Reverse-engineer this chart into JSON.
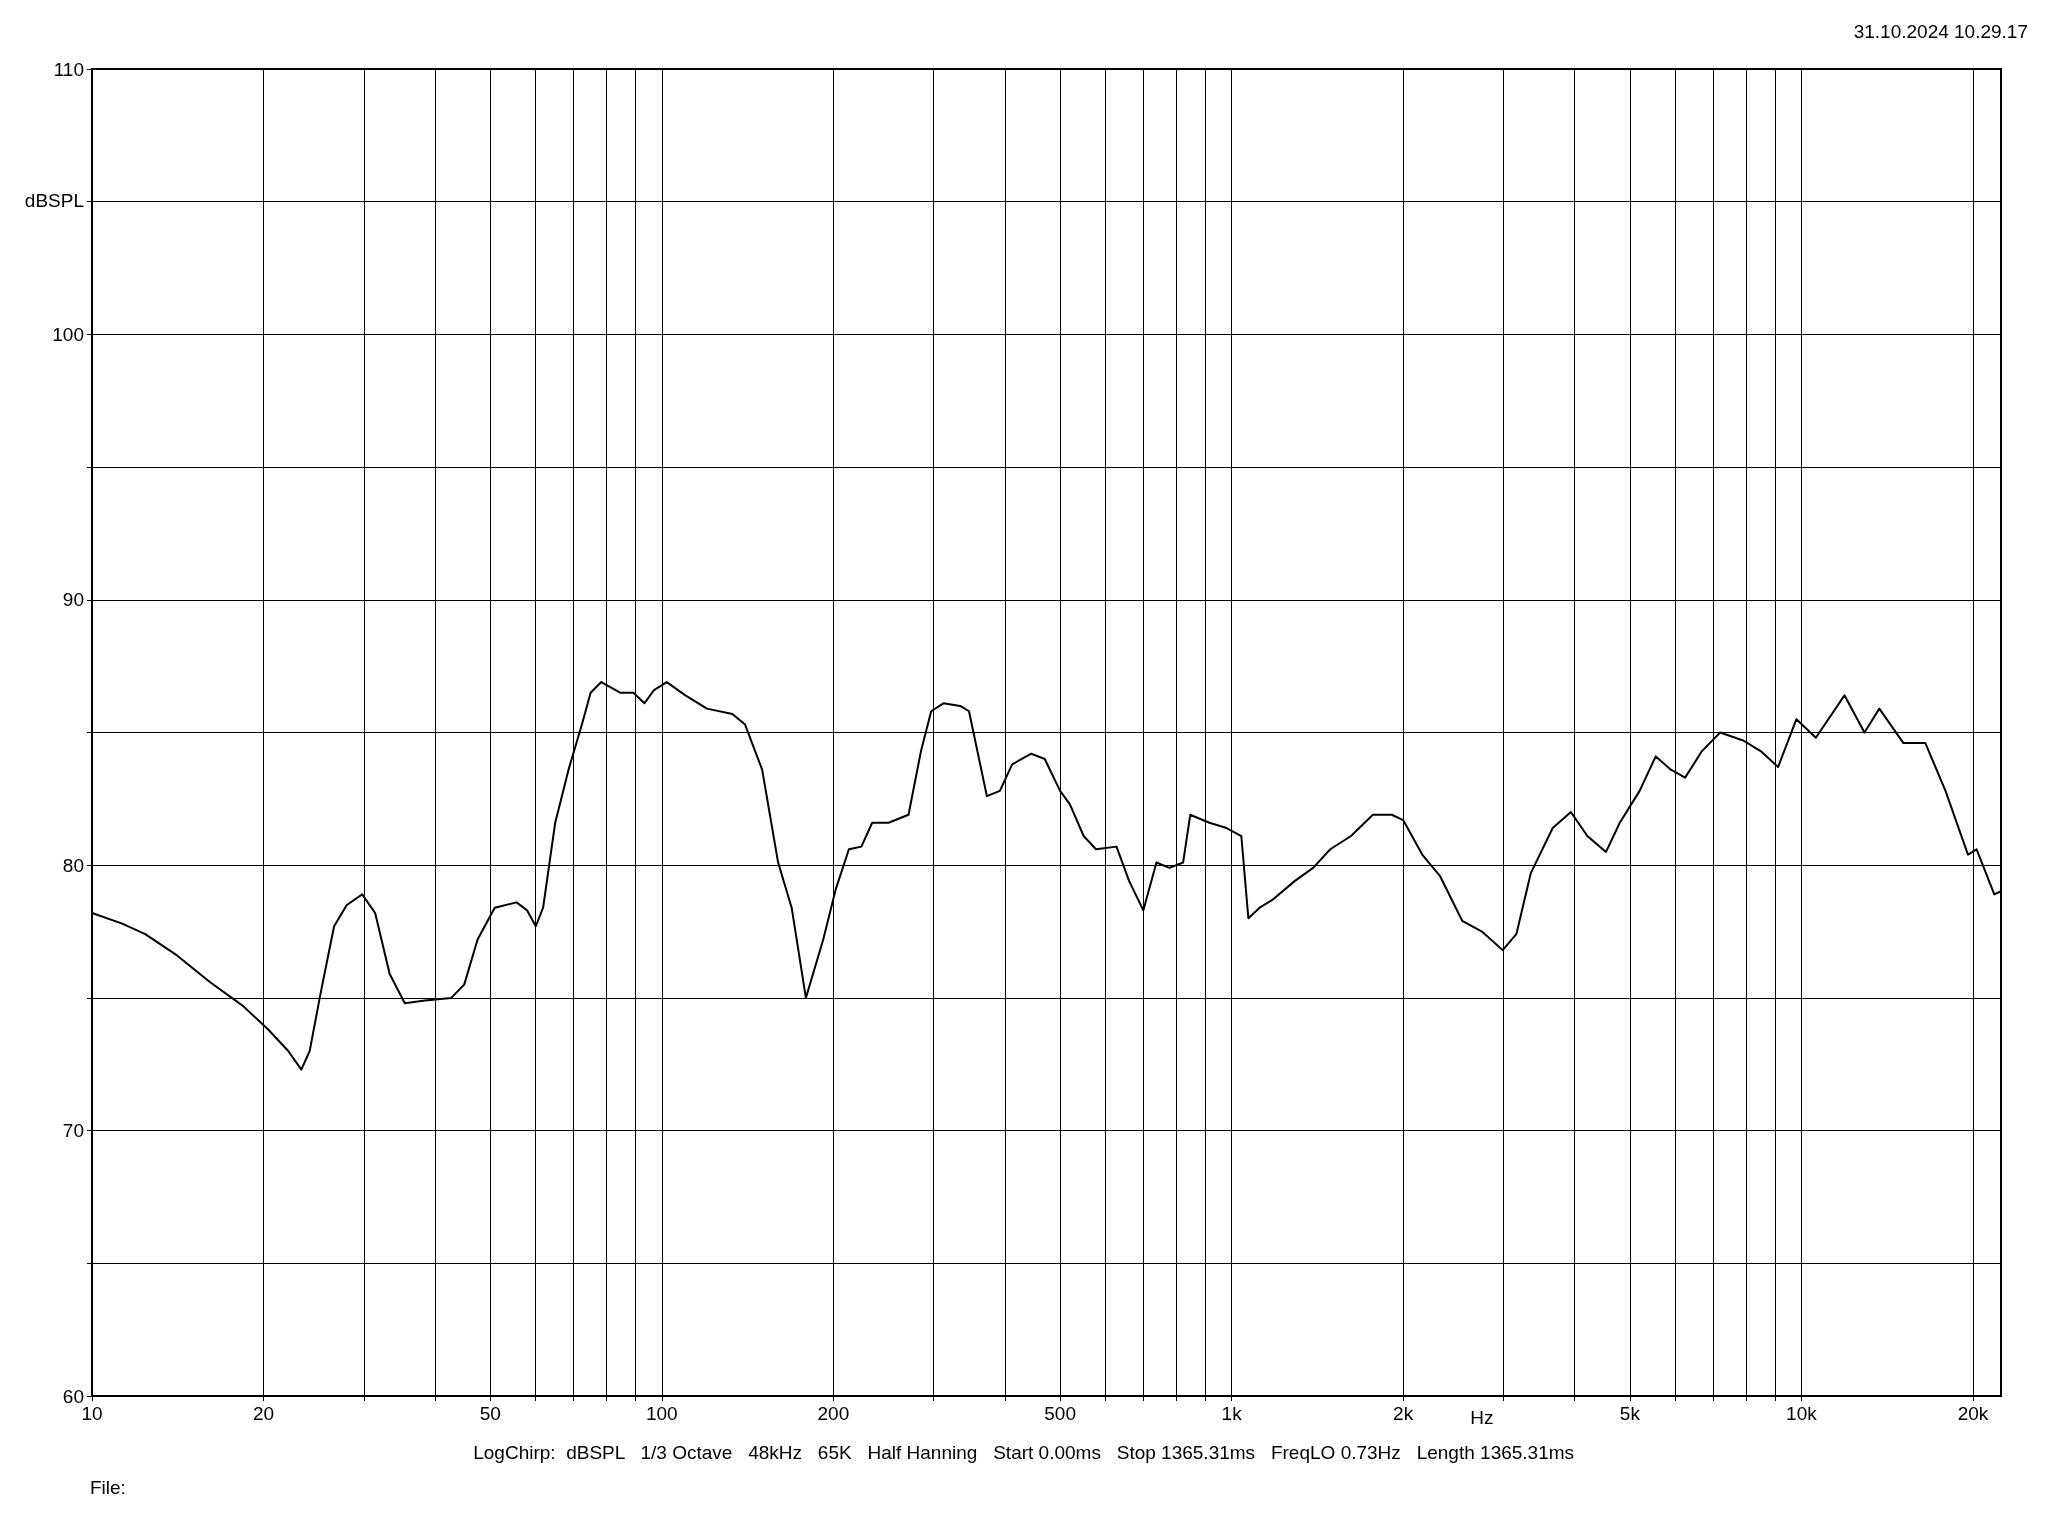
{
  "chart_data": {
    "type": "line",
    "xlabel": "Hz",
    "ylabel": "dBSPL",
    "annotations": [
      "31.10.2024 10.29.17",
      "LogChirp:  dBSPL   1/3 Octave   48kHz   65K   Half Hanning   Start 0.00ms   Stop 1365.31ms   FreqLO 0.73Hz   Length 1365.31ms",
      "File:"
    ],
    "log": "x",
    "grid": true,
    "marker": "none",
    "line_style": "solid",
    "xlim": [
      10,
      22400
    ],
    "ylim": [
      60,
      110
    ],
    "xticks": [
      10,
      20,
      {
        "value": 30,
        "label": null
      },
      {
        "value": 40,
        "label": null
      },
      50,
      {
        "value": 60,
        "label": null
      },
      {
        "value": 70,
        "label": null
      },
      {
        "value": 80,
        "label": null
      },
      {
        "value": 90,
        "label": null
      },
      100,
      200,
      {
        "value": 300,
        "label": null
      },
      {
        "value": 400,
        "label": null
      },
      500,
      {
        "value": 600,
        "label": null
      },
      {
        "value": 700,
        "label": null
      },
      {
        "value": 800,
        "label": null
      },
      {
        "value": 900,
        "label": null
      },
      {
        "value": 1000,
        "label": "1k"
      },
      {
        "value": 2000,
        "label": "2k"
      },
      {
        "value": 3000,
        "label": null
      },
      {
        "value": 4000,
        "label": null
      },
      {
        "value": 5000,
        "label": "5k"
      },
      {
        "value": 6000,
        "label": null
      },
      {
        "value": 7000,
        "label": null
      },
      {
        "value": 8000,
        "label": null
      },
      {
        "value": 9000,
        "label": null
      },
      {
        "value": 10000,
        "label": "10k"
      },
      {
        "value": 20000,
        "label": "20k"
      }
    ],
    "yticks": [
      60,
      {
        "value": 65,
        "label": null
      },
      70,
      {
        "value": 75,
        "label": null
      },
      80,
      {
        "value": 85,
        "label": null
      },
      90,
      {
        "value": 95,
        "label": null
      },
      100,
      {
        "value": 105,
        "label": null
      },
      110
    ],
    "series": [
      {
        "color": "#000000",
        "x": [
          10,
          11.3,
          12.4,
          14.1,
          16.1,
          18.4,
          20.4,
          22.1,
          23.3,
          24.1,
          25.2,
          26.6,
          28,
          29.8,
          31.4,
          33.3,
          35.4,
          38.4,
          42.7,
          45,
          47.5,
          50.9,
          55.6,
          58,
          60.1,
          61.9,
          65,
          68.6,
          72.4,
          75,
          78.3,
          84.5,
          89.2,
          93.2,
          96.9,
          102,
          110,
          120,
          133,
          140,
          150,
          160,
          169,
          179,
          192,
          202,
          213,
          224,
          234,
          250,
          271,
          285,
          297,
          312,
          334,
          346,
          372,
          392,
          412,
          445,
          470,
          500,
          520,
          550,
          578,
          628,
          661,
          700,
          738,
          778,
          822,
          846,
          914,
          980,
          1040,
          1070,
          1120,
          1180,
          1290,
          1390,
          1490,
          1620,
          1770,
          1910,
          2000,
          2160,
          2320,
          2540,
          2750,
          2990,
          3160,
          3350,
          3660,
          3940,
          4210,
          4540,
          4800,
          5200,
          5550,
          5900,
          6250,
          6690,
          7200,
          7900,
          8480,
          9100,
          9800,
          10600,
          11900,
          12900,
          13700,
          15100,
          16500,
          17900,
          19600,
          20300,
          21800,
          22300
        ],
        "values": [
          78.2,
          77.8,
          77.4,
          76.6,
          75.6,
          74.7,
          73.8,
          73.0,
          72.3,
          73.0,
          75.2,
          77.7,
          78.5,
          78.9,
          78.2,
          75.9,
          74.8,
          74.9,
          75.0,
          75.5,
          77.2,
          78.4,
          78.6,
          78.3,
          77.7,
          78.4,
          81.6,
          83.6,
          85.3,
          86.5,
          86.9,
          86.5,
          86.5,
          86.1,
          86.6,
          86.9,
          86.4,
          85.9,
          85.7,
          85.3,
          83.6,
          80.1,
          78.4,
          75.0,
          77.2,
          79.1,
          80.6,
          80.7,
          81.6,
          81.6,
          81.9,
          84.3,
          85.8,
          86.1,
          86.0,
          85.8,
          82.6,
          82.8,
          83.8,
          84.2,
          84.0,
          82.8,
          82.3,
          81.1,
          80.6,
          80.7,
          79.4,
          78.3,
          80.1,
          79.9,
          80.1,
          81.9,
          81.6,
          81.4,
          81.1,
          78.0,
          78.4,
          78.7,
          79.4,
          79.9,
          80.6,
          81.1,
          81.9,
          81.9,
          81.7,
          80.4,
          79.6,
          77.9,
          77.5,
          76.8,
          77.4,
          79.7,
          81.4,
          82.0,
          81.1,
          80.5,
          81.6,
          82.8,
          84.1,
          83.6,
          83.3,
          84.3,
          85.0,
          84.7,
          84.3,
          83.7,
          85.5,
          84.8,
          86.4,
          85.0,
          85.9,
          84.6,
          84.6,
          82.8,
          80.4,
          80.6,
          78.9,
          79.0
        ]
      }
    ]
  }
}
